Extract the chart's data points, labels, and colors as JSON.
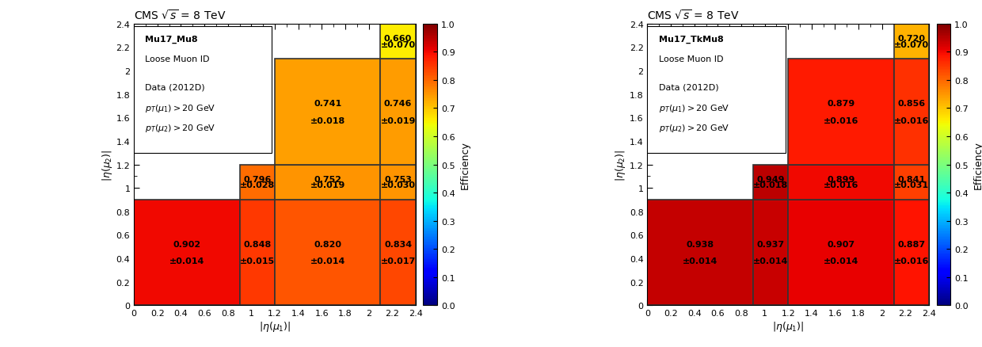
{
  "left_title": "CMS $\\sqrt{s}$ = 8 TeV",
  "right_title": "CMS $\\sqrt{s}$ = 8 TeV",
  "left_legend1": "Mu17_Mu8",
  "left_legend2": "Loose Muon ID",
  "right_legend1": "Mu17_TkMu8",
  "right_legend2": "Loose Muon ID",
  "data_label": "Data (2012D)",
  "xlabel": "$|\\eta(\\mu_1)|$",
  "ylabel": "$|\\eta(\\mu_2)|$",
  "colorbar_label": "Efficiency",
  "left_cells": [
    {
      "eta1_lo": 0.0,
      "eta1_hi": 0.9,
      "eta2_lo": 0.0,
      "eta2_hi": 0.9,
      "val": 0.902,
      "err": 0.014
    },
    {
      "eta1_lo": 0.9,
      "eta1_hi": 1.2,
      "eta2_lo": 0.0,
      "eta2_hi": 0.9,
      "val": 0.848,
      "err": 0.015
    },
    {
      "eta1_lo": 1.2,
      "eta1_hi": 2.1,
      "eta2_lo": 0.0,
      "eta2_hi": 0.9,
      "val": 0.82,
      "err": 0.014
    },
    {
      "eta1_lo": 2.1,
      "eta1_hi": 2.4,
      "eta2_lo": 0.0,
      "eta2_hi": 0.9,
      "val": 0.834,
      "err": 0.017
    },
    {
      "eta1_lo": 0.9,
      "eta1_hi": 1.2,
      "eta2_lo": 0.9,
      "eta2_hi": 1.2,
      "val": 0.796,
      "err": 0.028
    },
    {
      "eta1_lo": 1.2,
      "eta1_hi": 2.1,
      "eta2_lo": 0.9,
      "eta2_hi": 1.2,
      "val": 0.752,
      "err": 0.019
    },
    {
      "eta1_lo": 2.1,
      "eta1_hi": 2.4,
      "eta2_lo": 0.9,
      "eta2_hi": 1.2,
      "val": 0.753,
      "err": 0.03
    },
    {
      "eta1_lo": 1.2,
      "eta1_hi": 2.1,
      "eta2_lo": 1.2,
      "eta2_hi": 2.1,
      "val": 0.741,
      "err": 0.018
    },
    {
      "eta1_lo": 2.1,
      "eta1_hi": 2.4,
      "eta2_lo": 1.2,
      "eta2_hi": 2.1,
      "val": 0.746,
      "err": 0.019
    },
    {
      "eta1_lo": 2.1,
      "eta1_hi": 2.4,
      "eta2_lo": 2.1,
      "eta2_hi": 2.4,
      "val": 0.66,
      "err": 0.07
    }
  ],
  "right_cells": [
    {
      "eta1_lo": 0.0,
      "eta1_hi": 0.9,
      "eta2_lo": 0.0,
      "eta2_hi": 0.9,
      "val": 0.938,
      "err": 0.014
    },
    {
      "eta1_lo": 0.9,
      "eta1_hi": 1.2,
      "eta2_lo": 0.0,
      "eta2_hi": 0.9,
      "val": 0.937,
      "err": 0.014
    },
    {
      "eta1_lo": 1.2,
      "eta1_hi": 2.1,
      "eta2_lo": 0.0,
      "eta2_hi": 0.9,
      "val": 0.907,
      "err": 0.014
    },
    {
      "eta1_lo": 2.1,
      "eta1_hi": 2.4,
      "eta2_lo": 0.0,
      "eta2_hi": 0.9,
      "val": 0.887,
      "err": 0.016
    },
    {
      "eta1_lo": 0.9,
      "eta1_hi": 1.2,
      "eta2_lo": 0.9,
      "eta2_hi": 1.2,
      "val": 0.949,
      "err": 0.018
    },
    {
      "eta1_lo": 1.2,
      "eta1_hi": 2.1,
      "eta2_lo": 0.9,
      "eta2_hi": 1.2,
      "val": 0.899,
      "err": 0.016
    },
    {
      "eta1_lo": 2.1,
      "eta1_hi": 2.4,
      "eta2_lo": 0.9,
      "eta2_hi": 1.2,
      "val": 0.841,
      "err": 0.031
    },
    {
      "eta1_lo": 1.2,
      "eta1_hi": 2.1,
      "eta2_lo": 1.2,
      "eta2_hi": 2.1,
      "val": 0.879,
      "err": 0.016
    },
    {
      "eta1_lo": 2.1,
      "eta1_hi": 2.4,
      "eta2_lo": 1.2,
      "eta2_hi": 2.1,
      "val": 0.856,
      "err": 0.016
    },
    {
      "eta1_lo": 2.1,
      "eta1_hi": 2.4,
      "eta2_lo": 2.1,
      "eta2_hi": 2.4,
      "val": 0.72,
      "err": 0.07
    }
  ],
  "vmin": 0.0,
  "vmax": 1.0,
  "cell_edge_color": "#333333",
  "cell_edge_width": 1.2,
  "fontsize_val": 8,
  "fontsize_err": 8,
  "fontsize_label": 9,
  "fontsize_title": 10,
  "fontsize_legend": 8,
  "fontsize_tick": 8
}
